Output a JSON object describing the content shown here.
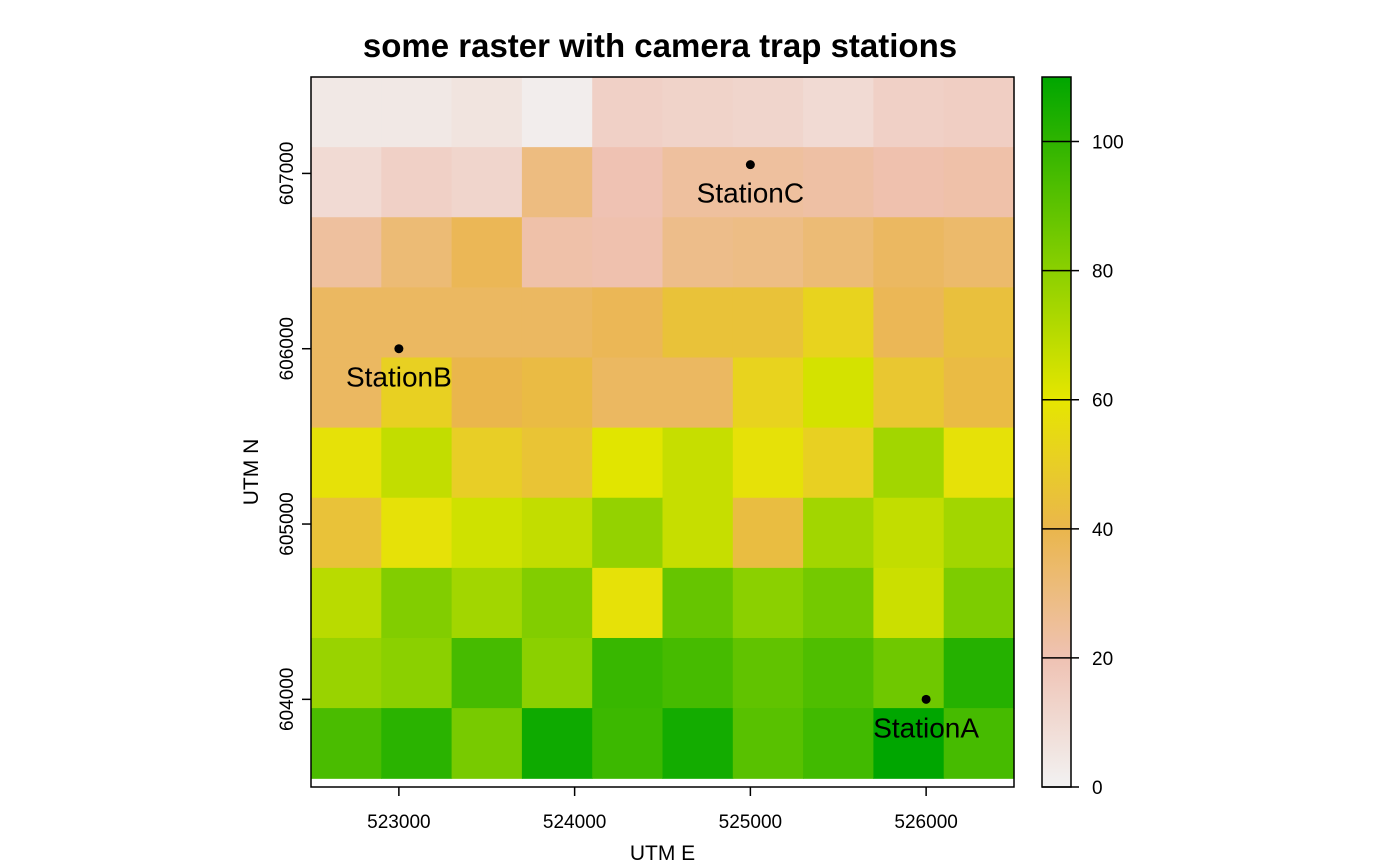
{
  "chart_data": {
    "type": "heatmap",
    "title": "some raster with camera trap stations",
    "xlabel": "UTM E",
    "ylabel": "UTM N",
    "xlim": [
      522500,
      526500
    ],
    "ylim": [
      603500,
      607550
    ],
    "x_ticks": [
      523000,
      524000,
      525000,
      526000
    ],
    "y_ticks": [
      604000,
      605000,
      606000,
      607000
    ],
    "raster": {
      "ncols": 10,
      "nrows": 10,
      "x_start": 522500,
      "y_top": 607550,
      "cell_size": 400,
      "values_top_to_bottom": [
        [
          4,
          4,
          6,
          2,
          14,
          13,
          12,
          10,
          14,
          15
        ],
        [
          10,
          14,
          12,
          30,
          20,
          24,
          24,
          23,
          21,
          22
        ],
        [
          24,
          32,
          38,
          22,
          21,
          28,
          29,
          32,
          36,
          34
        ],
        [
          36,
          36,
          36,
          36,
          38,
          45,
          45,
          52,
          38,
          44
        ],
        [
          36,
          51,
          40,
          42,
          36,
          36,
          52,
          64,
          47,
          42
        ],
        [
          58,
          68,
          50,
          46,
          61,
          67,
          58,
          51,
          75,
          58
        ],
        [
          45,
          58,
          65,
          68,
          78,
          67,
          43,
          75,
          68,
          75
        ],
        [
          70,
          82,
          75,
          82,
          58,
          88,
          80,
          85,
          66,
          83
        ],
        [
          77,
          80,
          95,
          80,
          98,
          95,
          89,
          93,
          86,
          102
        ],
        [
          94,
          101,
          84,
          107,
          97,
          106,
          91,
          96,
          110,
          95
        ]
      ]
    },
    "stations": [
      {
        "name": "StationA",
        "x": 526000,
        "y": 604000
      },
      {
        "name": "StationB",
        "x": 523000,
        "y": 606000
      },
      {
        "name": "StationC",
        "x": 525000,
        "y": 607050
      }
    ],
    "legend": {
      "placement": "right",
      "min": 0,
      "max": 110,
      "ticks": [
        0,
        20,
        40,
        60,
        80,
        100
      ],
      "color_stops": [
        {
          "value": 0,
          "color": "#f2f2f2"
        },
        {
          "value": 20,
          "color": "#efc2b3"
        },
        {
          "value": 40,
          "color": "#eab64c"
        },
        {
          "value": 60,
          "color": "#e6e600"
        },
        {
          "value": 80,
          "color": "#8bd000"
        },
        {
          "value": 110,
          "color": "#00a600"
        }
      ]
    },
    "grid": false
  }
}
